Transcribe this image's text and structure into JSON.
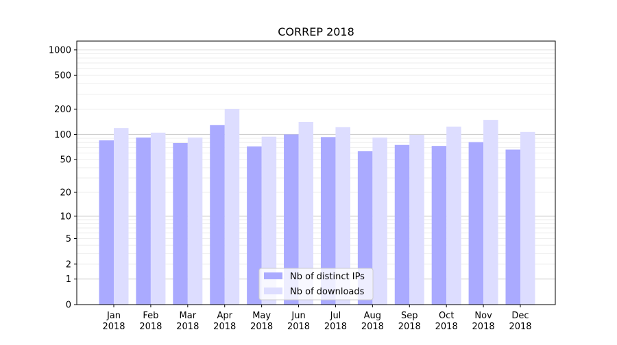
{
  "chart_data": {
    "type": "bar",
    "title": "CORREP 2018",
    "xlabel": "",
    "ylabel": "",
    "yscale": "log10(y+1)",
    "ylim": [
      0,
      1270
    ],
    "yticks": [
      0,
      1,
      2,
      5,
      10,
      20,
      50,
      100,
      200,
      500,
      1000
    ],
    "grid": true,
    "legend_position": "bottom-center",
    "categories": [
      "Jan\n2018",
      "Feb\n2018",
      "Mar\n2018",
      "Apr\n2018",
      "May\n2018",
      "Jun\n2018",
      "Jul\n2018",
      "Aug\n2018",
      "Sep\n2018",
      "Oct\n2018",
      "Nov\n2018",
      "Dec\n2018"
    ],
    "series": [
      {
        "name": "Nb of distinct IPs",
        "color": "#aaaaff",
        "values": [
          85,
          92,
          79,
          129,
          72,
          100,
          93,
          63,
          75,
          73,
          81,
          66
        ]
      },
      {
        "name": "Nb of downloads",
        "color": "#ddddff",
        "values": [
          119,
          105,
          92,
          201,
          94,
          141,
          122,
          92,
          99,
          124,
          149,
          107
        ]
      }
    ]
  }
}
